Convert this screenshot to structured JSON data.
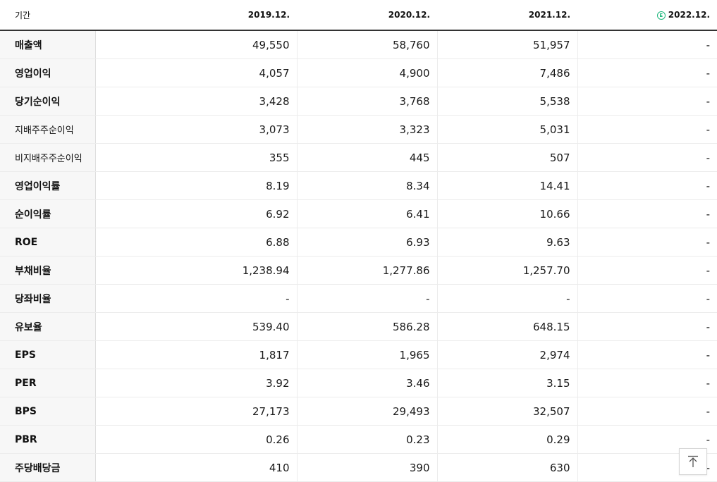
{
  "header": {
    "period_label": "기간",
    "columns": [
      "2019.12.",
      "2020.12.",
      "2021.12.",
      "2022.12."
    ],
    "estimate_mark": "E"
  },
  "rows": [
    {
      "label": "매출액",
      "values": [
        "49,550",
        "58,760",
        "51,957",
        "-"
      ]
    },
    {
      "label": "영업이익",
      "values": [
        "4,057",
        "4,900",
        "7,486",
        "-"
      ]
    },
    {
      "label": "당기순이익",
      "values": [
        "3,428",
        "3,768",
        "5,538",
        "-"
      ]
    },
    {
      "label": "지배주주순이익",
      "values": [
        "3,073",
        "3,323",
        "5,031",
        "-"
      ]
    },
    {
      "label": "비지배주주순이익",
      "values": [
        "355",
        "445",
        "507",
        "-"
      ]
    },
    {
      "label": "영업이익률",
      "values": [
        "8.19",
        "8.34",
        "14.41",
        "-"
      ]
    },
    {
      "label": "순이익률",
      "values": [
        "6.92",
        "6.41",
        "10.66",
        "-"
      ]
    },
    {
      "label": "ROE",
      "values": [
        "6.88",
        "6.93",
        "9.63",
        "-"
      ]
    },
    {
      "label": "부채비율",
      "values": [
        "1,238.94",
        "1,277.86",
        "1,257.70",
        "-"
      ]
    },
    {
      "label": "당좌비율",
      "values": [
        "-",
        "-",
        "-",
        "-"
      ]
    },
    {
      "label": "유보율",
      "values": [
        "539.40",
        "586.28",
        "648.15",
        "-"
      ]
    },
    {
      "label": "EPS",
      "values": [
        "1,817",
        "1,965",
        "2,974",
        "-"
      ]
    },
    {
      "label": "PER",
      "values": [
        "3.92",
        "3.46",
        "3.15",
        "-"
      ]
    },
    {
      "label": "BPS",
      "values": [
        "27,173",
        "29,493",
        "32,507",
        "-"
      ]
    },
    {
      "label": "PBR",
      "values": [
        "0.26",
        "0.23",
        "0.29",
        "-"
      ]
    },
    {
      "label": "주당배당금",
      "values": [
        "410",
        "390",
        "630",
        "-"
      ]
    }
  ],
  "scroll_top_button": {
    "icon": "arrow-up-to-top-icon"
  }
}
